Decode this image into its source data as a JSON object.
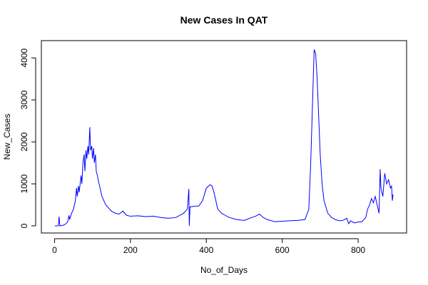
{
  "chart_data": {
    "type": "line",
    "title": "New Cases In QAT",
    "x_label": "No_of_Days",
    "y_label": "New_Cases",
    "x": [
      1,
      5,
      10,
      12,
      14,
      20,
      25,
      30,
      35,
      38,
      40,
      45,
      50,
      55,
      58,
      60,
      63,
      65,
      70,
      72,
      75,
      78,
      80,
      83,
      85,
      88,
      90,
      93,
      95,
      98,
      100,
      103,
      105,
      108,
      110,
      113,
      115,
      120,
      125,
      130,
      135,
      140,
      145,
      150,
      160,
      170,
      180,
      190,
      200,
      220,
      240,
      260,
      280,
      300,
      320,
      340,
      350,
      354,
      355,
      357,
      370,
      380,
      390,
      400,
      410,
      415,
      420,
      425,
      430,
      440,
      450,
      460,
      480,
      500,
      520,
      530,
      540,
      550,
      560,
      580,
      600,
      620,
      640,
      660,
      670,
      675,
      680,
      684,
      688,
      692,
      696,
      700,
      705,
      710,
      720,
      730,
      740,
      750,
      760,
      770,
      775,
      780,
      790,
      800,
      810,
      820,
      825,
      830,
      835,
      840,
      845,
      850,
      855,
      858,
      860,
      865,
      870,
      875,
      880,
      885,
      888,
      890,
      892
    ],
    "series": [
      {
        "name": "New_Cases",
        "color": "#0000ff",
        "values": [
          0,
          0,
          2,
          220,
          0,
          10,
          20,
          50,
          100,
          250,
          150,
          300,
          400,
          600,
          900,
          700,
          950,
          800,
          1200,
          1000,
          1500,
          1700,
          1300,
          1800,
          1600,
          1900,
          1700,
          2350,
          1800,
          1900,
          1600,
          1850,
          1500,
          1700,
          1300,
          1200,
          1100,
          900,
          700,
          600,
          500,
          450,
          400,
          350,
          300,
          280,
          350,
          250,
          230,
          240,
          220,
          230,
          200,
          180,
          200,
          300,
          400,
          880,
          0,
          450,
          470,
          470,
          600,
          900,
          980,
          950,
          800,
          600,
          400,
          300,
          250,
          200,
          150,
          130,
          200,
          230,
          280,
          200,
          150,
          100,
          110,
          120,
          130,
          150,
          400,
          1500,
          3000,
          4200,
          4100,
          3500,
          2600,
          1700,
          1000,
          600,
          300,
          200,
          150,
          120,
          130,
          180,
          50,
          120,
          70,
          90,
          100,
          200,
          400,
          500,
          650,
          550,
          700,
          500,
          300,
          1350,
          900,
          700,
          1250,
          1000,
          1100,
          900,
          950,
          600,
          750
        ]
      }
    ],
    "xlim": [
      -34.6,
      927.6
    ],
    "ylim": [
      -170,
      4412
    ],
    "xticks": [
      0,
      200,
      400,
      600,
      800
    ],
    "yticks": [
      0,
      1000,
      2000,
      3000,
      4000
    ]
  }
}
